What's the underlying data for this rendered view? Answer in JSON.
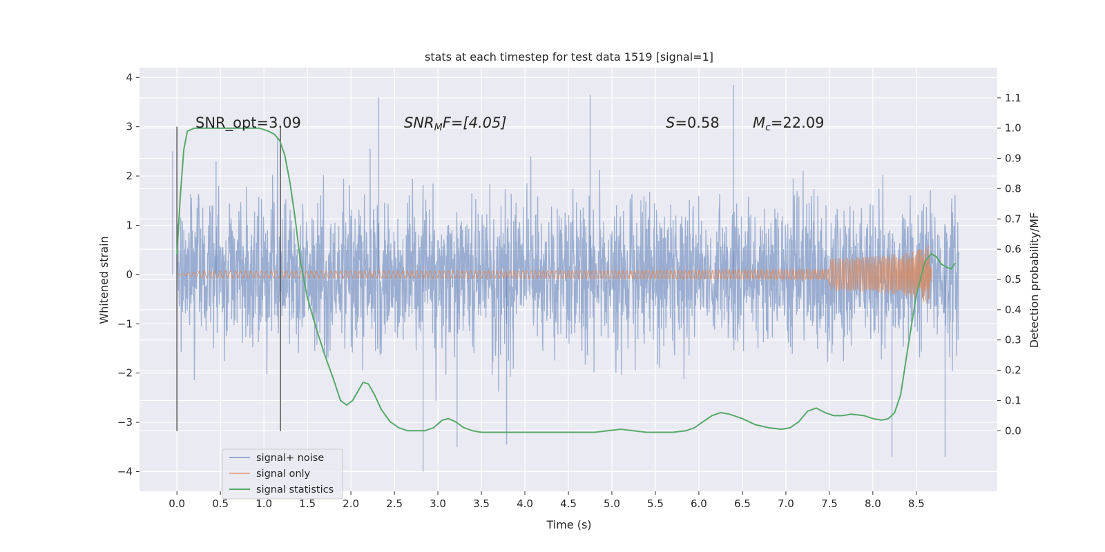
{
  "chart_data": {
    "type": "line",
    "title": "stats at each timestep for test data 1519 [signal=1]",
    "xlabel": "Time (s)",
    "ylabel": "Whitened strain",
    "y2label": "Detection probability/MF",
    "xlim": [
      -0.43,
      9.43
    ],
    "ylim": [
      -4.4,
      4.2
    ],
    "y2lim": [
      -0.2,
      1.2
    ],
    "xticks": [
      0.0,
      0.5,
      1.0,
      1.5,
      2.0,
      2.5,
      3.0,
      3.5,
      4.0,
      4.5,
      5.0,
      5.5,
      6.0,
      6.5,
      7.0,
      7.5,
      8.0,
      8.5
    ],
    "yticks": [
      -4,
      -3,
      -2,
      -1,
      0,
      1,
      2,
      3,
      4
    ],
    "y2ticks": [
      0.0,
      0.1,
      0.2,
      0.3,
      0.4,
      0.5,
      0.6,
      0.7,
      0.8,
      0.9,
      1.0,
      1.1
    ],
    "xtick_labels": [
      "0.0",
      "0.5",
      "1.0",
      "1.5",
      "2.0",
      "2.5",
      "3.0",
      "3.5",
      "4.0",
      "4.5",
      "5.0",
      "5.5",
      "6.0",
      "6.5",
      "7.0",
      "7.5",
      "8.0",
      "8.5"
    ],
    "ytick_labels": [
      "−4",
      "−3",
      "−2",
      "−1",
      "0",
      "1",
      "2",
      "3",
      "4"
    ],
    "y2tick_labels": [
      "0.0",
      "0.1",
      "0.2",
      "0.3",
      "0.4",
      "0.5",
      "0.6",
      "0.7",
      "0.8",
      "0.9",
      "1.0",
      "1.1"
    ],
    "grid": true,
    "legend_position": "lower-left",
    "colors": {
      "background": "#eaeaf2",
      "grid": "#ffffff",
      "noise": "#4c72b0",
      "signal": "#dd8452",
      "stats": "#55a868",
      "vline": "#555555"
    },
    "annotations": {
      "snr_opt": "SNR_opt=3.09",
      "snr_mf_main": "SNR",
      "snr_mf_sub": "M",
      "snr_mf_rest": "F=[4.05]",
      "s_main": "S",
      "s_rest": "=0.58",
      "mc_main": "M",
      "mc_sub": "c",
      "mc_rest": "=22.09"
    },
    "vertical_lines_x": [
      0.0,
      1.19
    ],
    "series": [
      {
        "name": "signal+ noise",
        "axis": "left",
        "noise_range": [
          0.0,
          8.99
        ],
        "noise_sigma": 0.75,
        "noise_peaks": [
          [
            -0.05,
            2.5
          ],
          [
            0.45,
            2.3
          ],
          [
            2.32,
            3.6
          ],
          [
            2.83,
            -4.0
          ],
          [
            3.22,
            -3.5
          ],
          [
            3.79,
            -3.45
          ],
          [
            4.75,
            3.65
          ],
          [
            6.4,
            3.85
          ],
          [
            8.22,
            -3.7
          ],
          [
            8.83,
            -3.7
          ]
        ]
      },
      {
        "name": "signal only",
        "axis": "left",
        "signal_range": [
          0.0,
          8.68
        ],
        "signal_amplitude_end": 0.72
      },
      {
        "name": "signal statistics",
        "axis": "right",
        "x": [
          0.0,
          0.04,
          0.08,
          0.12,
          0.2,
          0.3,
          0.45,
          0.6,
          0.8,
          0.95,
          1.05,
          1.12,
          1.18,
          1.24,
          1.3,
          1.36,
          1.42,
          1.5,
          1.6,
          1.7,
          1.8,
          1.88,
          1.95,
          2.02,
          2.08,
          2.14,
          2.2,
          2.27,
          2.35,
          2.45,
          2.55,
          2.65,
          2.75,
          2.85,
          2.95,
          3.05,
          3.12,
          3.2,
          3.3,
          3.4,
          3.5,
          3.7,
          4.0,
          4.5,
          4.8,
          5.1,
          5.4,
          5.7,
          5.85,
          5.95,
          6.05,
          6.15,
          6.25,
          6.35,
          6.5,
          6.65,
          6.8,
          6.95,
          7.05,
          7.15,
          7.25,
          7.35,
          7.45,
          7.55,
          7.65,
          7.75,
          7.9,
          8.0,
          8.1,
          8.18,
          8.25,
          8.32,
          8.4,
          8.5,
          8.6,
          8.67,
          8.73,
          8.79,
          8.85,
          8.9,
          8.95
        ],
        "y": [
          0.58,
          0.78,
          0.93,
          0.99,
          1.0,
          1.0,
          1.0,
          1.0,
          1.0,
          1.0,
          0.99,
          0.98,
          0.96,
          0.91,
          0.82,
          0.7,
          0.56,
          0.44,
          0.34,
          0.25,
          0.17,
          0.1,
          0.085,
          0.1,
          0.13,
          0.16,
          0.155,
          0.12,
          0.07,
          0.03,
          0.01,
          0.0,
          0.0,
          0.0,
          0.01,
          0.035,
          0.04,
          0.03,
          0.01,
          0.0,
          -0.005,
          -0.005,
          -0.005,
          -0.005,
          -0.005,
          0.005,
          -0.005,
          -0.005,
          0.0,
          0.01,
          0.03,
          0.05,
          0.06,
          0.055,
          0.04,
          0.02,
          0.01,
          0.005,
          0.01,
          0.03,
          0.065,
          0.075,
          0.06,
          0.05,
          0.05,
          0.055,
          0.05,
          0.04,
          0.035,
          0.04,
          0.06,
          0.12,
          0.27,
          0.45,
          0.56,
          0.585,
          0.575,
          0.55,
          0.54,
          0.535,
          0.555
        ]
      }
    ]
  }
}
